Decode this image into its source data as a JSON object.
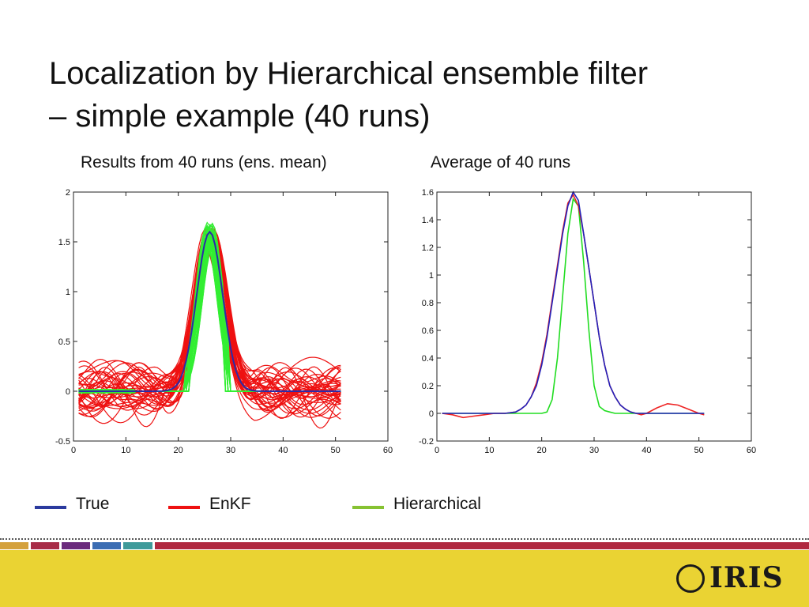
{
  "slide": {
    "title_line1": "Localization by Hierarchical ensemble filter",
    "title_line2": "– simple example (40 runs)"
  },
  "legend": [
    {
      "label": "True",
      "color": "#2b3a9e"
    },
    {
      "label": "EnKF",
      "color": "#ee1111"
    },
    {
      "label": "Hierarchical",
      "color": "#86c232"
    }
  ],
  "footer": {
    "logo_text": "IRIS",
    "background": "#ead333",
    "stripe_colors": [
      "#d4a13c",
      "#a82c47",
      "#6b2b7d",
      "#3b6db3",
      "#3e9a9a",
      "#b0283f"
    ]
  },
  "chart_data": [
    {
      "type": "line",
      "title": "Results from 40 runs (ens. mean)",
      "xlabel": "",
      "ylabel": "",
      "xlim": [
        0,
        60
      ],
      "ylim": [
        -0.5,
        2
      ],
      "xticks": [
        0,
        10,
        20,
        30,
        40,
        50,
        60
      ],
      "yticks": [
        -0.5,
        0,
        0.5,
        1,
        1.5,
        2
      ],
      "ytick_labels": [
        "-0.5",
        "0",
        "0.5",
        "1",
        "1.5",
        "2"
      ],
      "grid": false,
      "runs": 40,
      "peak_x": 26,
      "series": [
        {
          "name": "True",
          "color": "#2b2ba8",
          "peak": 1.6,
          "width": 3.5
        },
        {
          "name": "EnKF",
          "color": "#ee1111",
          "peak_range": [
            1.45,
            1.65
          ],
          "width": 3.8,
          "background_noise_range": [
            -0.45,
            0.5
          ]
        },
        {
          "name": "Hierarchical",
          "color": "#33ee33",
          "peak_range": [
            1.45,
            1.7
          ],
          "width": 2.9,
          "support": [
            21,
            30
          ]
        }
      ]
    },
    {
      "type": "line",
      "title": "Average of 40 runs",
      "xlabel": "",
      "ylabel": "",
      "xlim": [
        0,
        60
      ],
      "ylim": [
        -0.2,
        1.6
      ],
      "xticks": [
        0,
        10,
        20,
        30,
        40,
        50,
        60
      ],
      "yticks": [
        -0.2,
        0,
        0.2,
        0.4,
        0.6,
        0.8,
        1,
        1.2,
        1.4,
        1.6
      ],
      "ytick_labels": [
        "-0.2",
        "0",
        "0.2",
        "0.4",
        "0.6",
        "0.8",
        "1",
        "1.2",
        "1.4",
        "1.6"
      ],
      "grid": false,
      "x": [
        1,
        3,
        5,
        7,
        9,
        11,
        13,
        15,
        16,
        17,
        18,
        19,
        20,
        21,
        22,
        23,
        24,
        25,
        26,
        27,
        28,
        29,
        30,
        31,
        32,
        33,
        34,
        35,
        36,
        37,
        38,
        39,
        40,
        42,
        44,
        46,
        48,
        50,
        51
      ],
      "series": [
        {
          "name": "True",
          "color": "#2222bb",
          "y": [
            0,
            0,
            0,
            0,
            0,
            0,
            0,
            0.01,
            0.03,
            0.06,
            0.12,
            0.2,
            0.35,
            0.55,
            0.8,
            1.05,
            1.3,
            1.5,
            1.6,
            1.54,
            1.3,
            1.05,
            0.8,
            0.55,
            0.35,
            0.2,
            0.12,
            0.06,
            0.03,
            0.01,
            0,
            0,
            0,
            0,
            0,
            0,
            0,
            0,
            0
          ]
        },
        {
          "name": "EnKF",
          "color": "#ee2222",
          "y": [
            0,
            -0.01,
            -0.03,
            -0.02,
            -0.01,
            0,
            0,
            0.01,
            0.03,
            0.06,
            0.12,
            0.22,
            0.37,
            0.57,
            0.82,
            1.07,
            1.32,
            1.52,
            1.58,
            1.5,
            1.3,
            1.05,
            0.8,
            0.55,
            0.35,
            0.2,
            0.12,
            0.06,
            0.03,
            0.01,
            0,
            -0.01,
            0,
            0.04,
            0.07,
            0.06,
            0.03,
            0,
            -0.01
          ]
        },
        {
          "name": "Hierarchical",
          "color": "#22dd22",
          "y": [
            0,
            0,
            0,
            0,
            0,
            0,
            0,
            0,
            0,
            0,
            0,
            0,
            0,
            0.01,
            0.1,
            0.4,
            0.85,
            1.3,
            1.55,
            1.5,
            1.1,
            0.6,
            0.2,
            0.05,
            0.02,
            0.01,
            0,
            0,
            0,
            0,
            0,
            0,
            0,
            0,
            0,
            0,
            0,
            0,
            0
          ]
        }
      ]
    }
  ]
}
